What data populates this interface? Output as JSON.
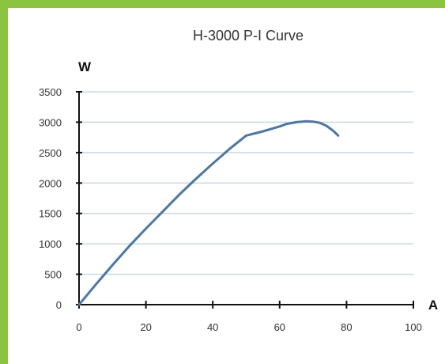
{
  "colors": {
    "border": "#8bc53f",
    "background": "#ffffff",
    "gridline": "#c9d9e8",
    "series_line": "#4a77a8",
    "axis": "#111111"
  },
  "chart_data": {
    "type": "line",
    "title": "H-3000 P-I Curve",
    "ylabel": "W",
    "xlabel": "A",
    "xlim": [
      0,
      100
    ],
    "ylim": [
      0,
      3500
    ],
    "x_ticks": [
      "0",
      "20",
      "40",
      "60",
      "80",
      "100"
    ],
    "y_ticks": [
      "0",
      "500",
      "1000",
      "1500",
      "2000",
      "2500",
      "3000",
      "3500"
    ],
    "grid": "horizontal",
    "series": [
      {
        "x": [
          0,
          5,
          10,
          15,
          20,
          25,
          30,
          35,
          40,
          45,
          50,
          55,
          60,
          62,
          65,
          68,
          70,
          72,
          74,
          76,
          77.5
        ],
        "values": [
          0,
          330,
          650,
          960,
          1250,
          1530,
          1810,
          2070,
          2320,
          2560,
          2780,
          2850,
          2930,
          2970,
          3000,
          3015,
          3010,
          2990,
          2940,
          2860,
          2780
        ]
      }
    ]
  }
}
